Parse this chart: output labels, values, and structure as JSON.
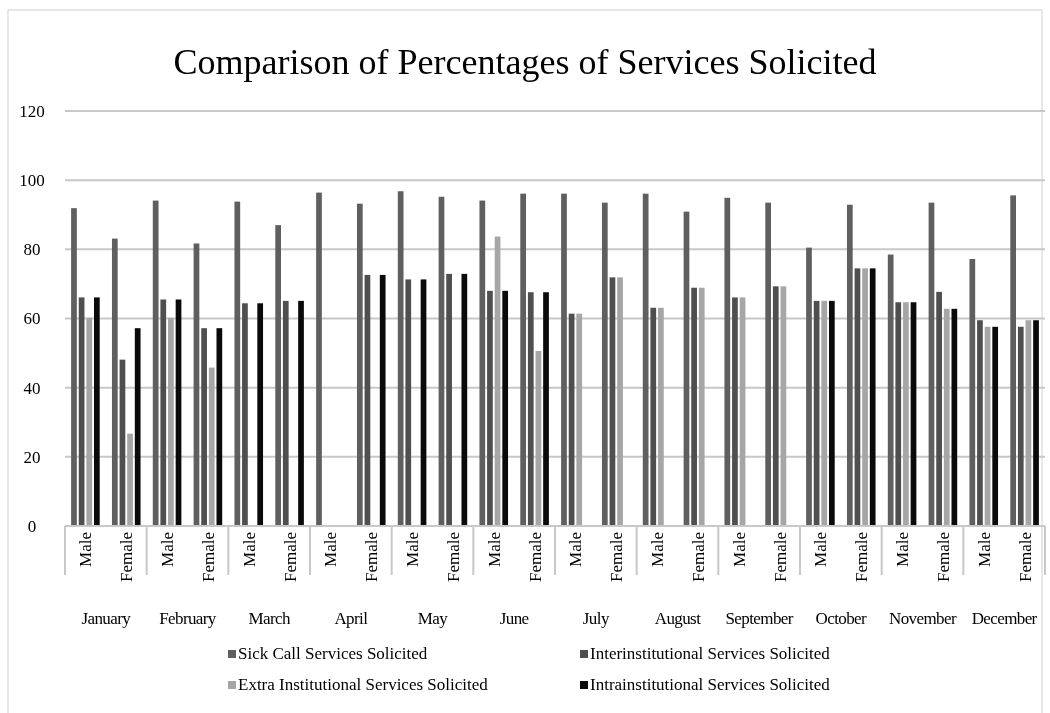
{
  "chart_data": {
    "type": "bar",
    "title": "Comparison of Percentages of Services Solicited",
    "categories": [
      "Male",
      "Female",
      "Male",
      "Female",
      "Male",
      "Female",
      "Male",
      "Female",
      "Male",
      "Female",
      "Male",
      "Female",
      "Male",
      "Female",
      "Male",
      "Female",
      "Male",
      "Female",
      "Male",
      "Female",
      "Male",
      "Female",
      "Male",
      "Female"
    ],
    "annotations": [
      "January",
      "February",
      "March",
      "April",
      "May",
      "June",
      "July",
      "August",
      "September",
      "October",
      "November",
      "December"
    ],
    "series": [
      {
        "name": "Sick Call Services Solicited",
        "color": "#5f5f5f",
        "values": [
          91.9,
          83.1,
          94.1,
          81.7,
          93.8,
          87.0,
          96.4,
          93.2,
          96.8,
          95.2,
          94.1,
          96.1,
          96.1,
          93.5,
          96.1,
          90.9,
          94.9,
          93.5,
          80.5,
          92.9,
          78.5,
          93.5,
          77.2,
          95.6
        ]
      },
      {
        "name": "Interinstitutional Services Solicited",
        "color": "#4f4f4f",
        "values": [
          66.1,
          48.1,
          65.5,
          57.2,
          64.4,
          65.1,
          null,
          72.6,
          71.3,
          72.9,
          68.0,
          67.6,
          61.4,
          71.9,
          63.1,
          68.9,
          66.1,
          69.3,
          65.1,
          74.5,
          64.7,
          67.7,
          59.5,
          57.6
        ]
      },
      {
        "name": "Extra Institutional Services Solicited",
        "color": "#a6a6a6",
        "values": [
          60.2,
          26.7,
          60.2,
          45.8,
          null,
          null,
          null,
          null,
          null,
          null,
          83.7,
          50.6,
          61.4,
          71.9,
          63.1,
          68.9,
          66.1,
          69.3,
          65.1,
          74.5,
          64.7,
          62.8,
          57.6,
          59.5
        ]
      },
      {
        "name": "Intrainstitutional Services Solicited",
        "color": "#0a0a0a",
        "values": [
          66.1,
          57.2,
          65.5,
          57.2,
          64.4,
          65.1,
          null,
          72.6,
          71.3,
          72.9,
          68.0,
          67.6,
          null,
          null,
          null,
          null,
          null,
          null,
          65.1,
          74.5,
          64.7,
          62.8,
          57.6,
          59.5
        ]
      }
    ],
    "ylim": [
      0,
      120
    ],
    "yticks": [
      0,
      20,
      40,
      60,
      80,
      100,
      120
    ],
    "grid": "y",
    "legend": "bottom"
  }
}
